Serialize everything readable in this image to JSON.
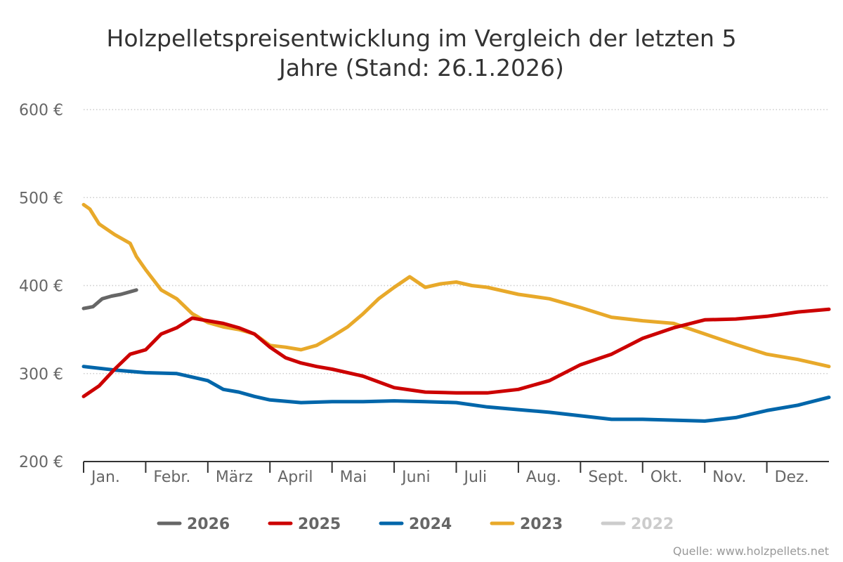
{
  "chart_data": {
    "type": "line",
    "title": "Holzpelletspreisentwicklung im Vergleich der letzten 5 Jahre (Stand: 26.1.2026)",
    "xlabel": "",
    "ylabel": "",
    "ylim": [
      200,
      600
    ],
    "yticks": [
      200,
      300,
      400,
      500,
      600
    ],
    "ytick_labels": [
      "200 €",
      "300 €",
      "400 €",
      "500 €",
      "600 €"
    ],
    "categories": [
      "Jan.",
      "Febr.",
      "März",
      "April",
      "Mai",
      "Juni",
      "Juli",
      "Aug.",
      "Sept.",
      "Okt.",
      "Nov.",
      "Dez."
    ],
    "grid": true,
    "legend_position": "bottom",
    "x_unit": "month (0 = 1 Jan, 12 = 31 Dec)",
    "series": [
      {
        "name": "2026",
        "color": "#666666",
        "visible": true,
        "x": [
          0,
          0.15,
          0.3,
          0.45,
          0.6,
          0.75,
          0.85
        ],
        "values": [
          374,
          376,
          385,
          388,
          390,
          393,
          395
        ]
      },
      {
        "name": "2025",
        "color": "#cc0000",
        "visible": true,
        "x": [
          0,
          0.25,
          0.5,
          0.75,
          1,
          1.25,
          1.5,
          1.75,
          2,
          2.25,
          2.5,
          2.75,
          3,
          3.25,
          3.5,
          3.75,
          4,
          4.5,
          5,
          5.5,
          6,
          6.5,
          7,
          7.5,
          8,
          8.5,
          9,
          9.5,
          10,
          10.5,
          11,
          11.5,
          12
        ],
        "values": [
          274,
          286,
          305,
          322,
          327,
          345,
          352,
          363,
          360,
          357,
          352,
          345,
          330,
          318,
          312,
          308,
          305,
          297,
          284,
          279,
          278,
          278,
          282,
          292,
          310,
          322,
          340,
          352,
          361,
          362,
          365,
          370,
          373
        ]
      },
      {
        "name": "2024",
        "color": "#0066aa",
        "visible": true,
        "x": [
          0,
          0.5,
          1,
          1.5,
          2,
          2.25,
          2.5,
          2.75,
          3,
          3.5,
          4,
          4.5,
          5,
          5.5,
          6,
          6.5,
          7,
          7.5,
          8,
          8.5,
          9,
          9.5,
          10,
          10.5,
          11,
          11.5,
          12
        ],
        "values": [
          308,
          304,
          301,
          300,
          292,
          282,
          279,
          274,
          270,
          267,
          268,
          268,
          269,
          268,
          267,
          262,
          259,
          256,
          252,
          248,
          248,
          247,
          246,
          250,
          258,
          264,
          273
        ]
      },
      {
        "name": "2023",
        "color": "#e8a92a",
        "visible": true,
        "x": [
          0,
          0.1,
          0.25,
          0.5,
          0.75,
          0.85,
          1,
          1.25,
          1.5,
          1.75,
          2,
          2.25,
          2.5,
          2.75,
          3,
          3.25,
          3.5,
          3.75,
          4,
          4.25,
          4.5,
          4.75,
          5,
          5.25,
          5.5,
          5.75,
          6,
          6.25,
          6.5,
          7,
          7.5,
          8,
          8.5,
          9,
          9.5,
          10,
          10.5,
          11,
          11.5,
          12
        ],
        "values": [
          492,
          487,
          470,
          458,
          448,
          433,
          418,
          395,
          385,
          368,
          358,
          353,
          350,
          345,
          332,
          330,
          327,
          332,
          342,
          353,
          368,
          385,
          398,
          410,
          398,
          402,
          404,
          400,
          398,
          390,
          385,
          375,
          364,
          360,
          357,
          345,
          333,
          322,
          316,
          308
        ]
      },
      {
        "name": "2022",
        "color": "#cccccc",
        "visible": false,
        "x": [],
        "values": []
      }
    ]
  },
  "source": "Quelle: www.holzpellets.net"
}
